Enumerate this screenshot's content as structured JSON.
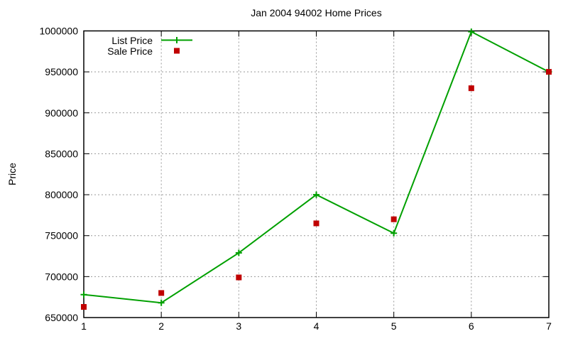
{
  "window": {
    "background": "#ffffff"
  },
  "chart_data": {
    "type": "line",
    "title": "Jan 2004 94002 Home Prices",
    "xlabel": "",
    "ylabel": "Price",
    "x": [
      1,
      2,
      3,
      4,
      5,
      6,
      7
    ],
    "series": [
      {
        "name": "List Price",
        "marker": "plus",
        "draw_line": true,
        "color": "#00a000",
        "values": [
          678000,
          668000,
          729000,
          800000,
          753000,
          999000,
          950000
        ]
      },
      {
        "name": "Sale Price",
        "marker": "square",
        "draw_line": false,
        "color": "#c00000",
        "values": [
          663000,
          680000,
          699000,
          765000,
          770000,
          930000,
          950000
        ]
      }
    ],
    "xlim": [
      1,
      7
    ],
    "ylim": [
      650000,
      1000000
    ],
    "x_ticks": [
      "1",
      "2",
      "3",
      "4",
      "5",
      "6",
      "7"
    ],
    "y_ticks": [
      "650000",
      "700000",
      "750000",
      "800000",
      "850000",
      "900000",
      "950000",
      "1000000"
    ],
    "grid": true,
    "legend_position": "inside-top-left",
    "colors": {
      "axis": "#000000",
      "grid": "#999999",
      "text": "#000000",
      "background": "#ffffff"
    }
  }
}
